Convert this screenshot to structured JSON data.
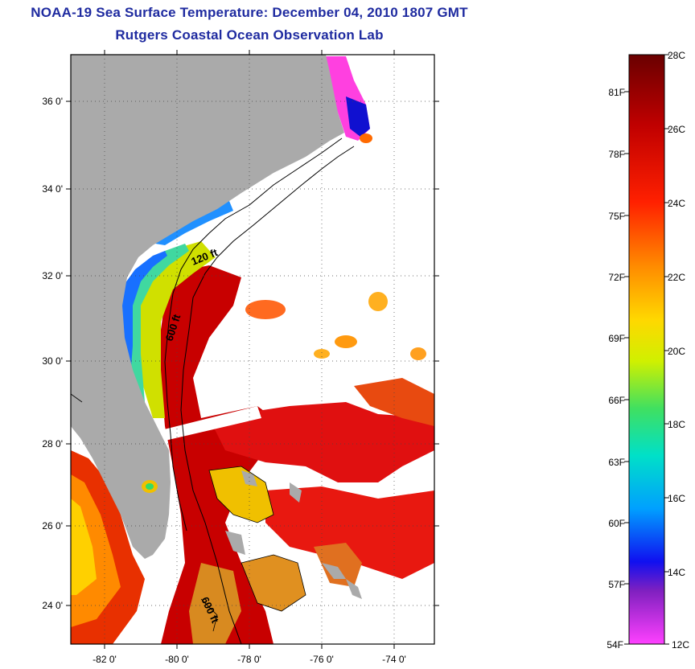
{
  "title": "NOAA-19 Sea Surface Temperature:  December 04, 2010 1807 GMT",
  "subtitle": "Rutgers Coastal Ocean Observation Lab",
  "lat_labels": [
    "36 0'",
    "34 0'",
    "32 0'",
    "30 0'",
    "28 0'",
    "26 0'",
    "24 0'"
  ],
  "lon_labels": [
    "-82 0'",
    "-80 0'",
    "-78 0'",
    "-76 0'",
    "-74 0'"
  ],
  "contour_labels": [
    "120 ft",
    "600 ft",
    "600 ft"
  ],
  "colorbar": {
    "celsius": [
      "28C",
      "26C",
      "24C",
      "22C",
      "20C",
      "18C",
      "16C",
      "14C",
      "12C"
    ],
    "fahrenheit": [
      "81F",
      "78F",
      "75F",
      "72F",
      "69F",
      "66F",
      "63F",
      "60F",
      "57F",
      "54F"
    ],
    "colors": [
      "#7a0000",
      "#d40000",
      "#ff3300",
      "#ff8800",
      "#ffd000",
      "#c8f000",
      "#40e060",
      "#00d8d8",
      "#0088ff",
      "#1010e0",
      "#8020c0",
      "#ff40ff"
    ]
  },
  "colors": {
    "land": "#aaaaaa",
    "title": "#1f2ba0"
  }
}
